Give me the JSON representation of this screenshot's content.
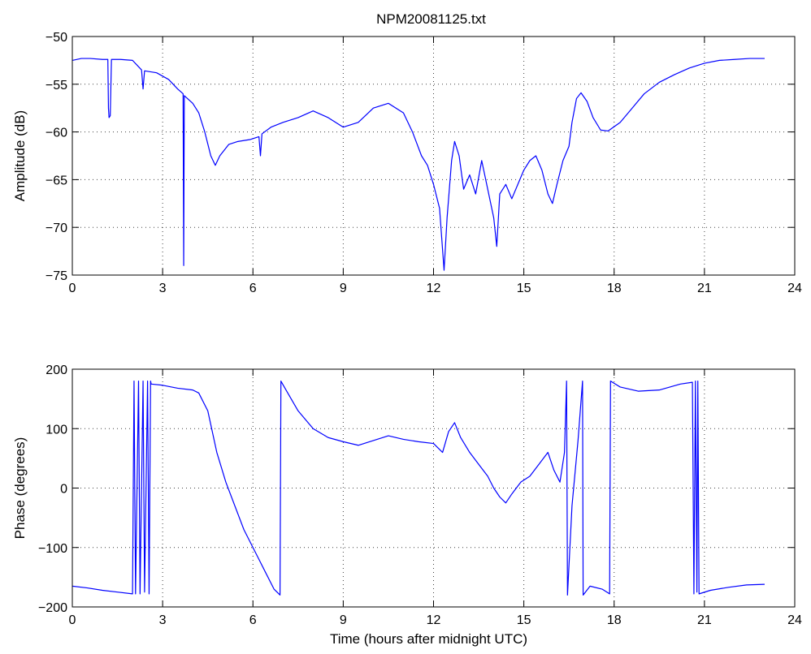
{
  "chart_data": [
    {
      "type": "line",
      "title": "NPM20081125.txt",
      "xlabel": "",
      "ylabel": "Amplitude (dB)",
      "xlim": [
        0,
        24
      ],
      "ylim": [
        -75,
        -50
      ],
      "xticks": [
        "0",
        "3",
        "6",
        "9",
        "12",
        "15",
        "18",
        "21",
        "24"
      ],
      "yticks": [
        "-50",
        "-55",
        "-60",
        "-65",
        "-70",
        "-75"
      ],
      "grid": true,
      "series": [
        {
          "color": "#0000ff",
          "points": [
            [
              0,
              -52.5
            ],
            [
              0.3,
              -52.3
            ],
            [
              0.6,
              -52.3
            ],
            [
              1.0,
              -52.4
            ],
            [
              1.18,
              -52.4
            ],
            [
              1.2,
              -57.5
            ],
            [
              1.22,
              -58.5
            ],
            [
              1.26,
              -58.3
            ],
            [
              1.3,
              -52.4
            ],
            [
              1.6,
              -52.4
            ],
            [
              2.0,
              -52.5
            ],
            [
              2.3,
              -53.5
            ],
            [
              2.35,
              -55.5
            ],
            [
              2.4,
              -53.6
            ],
            [
              2.8,
              -53.8
            ],
            [
              3.2,
              -54.5
            ],
            [
              3.5,
              -55.5
            ],
            [
              3.68,
              -56.0
            ],
            [
              3.7,
              -74.0
            ],
            [
              3.72,
              -56.2
            ],
            [
              4.0,
              -57.0
            ],
            [
              4.2,
              -58.0
            ],
            [
              4.4,
              -60.0
            ],
            [
              4.6,
              -62.5
            ],
            [
              4.75,
              -63.5
            ],
            [
              4.9,
              -62.5
            ],
            [
              5.2,
              -61.3
            ],
            [
              5.5,
              -61.0
            ],
            [
              5.9,
              -60.8
            ],
            [
              6.2,
              -60.5
            ],
            [
              6.25,
              -62.5
            ],
            [
              6.3,
              -60.2
            ],
            [
              6.6,
              -59.5
            ],
            [
              7.0,
              -59.0
            ],
            [
              7.5,
              -58.5
            ],
            [
              8.0,
              -57.8
            ],
            [
              8.5,
              -58.5
            ],
            [
              9.0,
              -59.5
            ],
            [
              9.5,
              -59.0
            ],
            [
              10.0,
              -57.5
            ],
            [
              10.5,
              -57.0
            ],
            [
              11.0,
              -58.0
            ],
            [
              11.3,
              -60.0
            ],
            [
              11.6,
              -62.5
            ],
            [
              11.8,
              -63.5
            ],
            [
              12.0,
              -65.5
            ],
            [
              12.2,
              -68.0
            ],
            [
              12.35,
              -74.5
            ],
            [
              12.45,
              -69.0
            ],
            [
              12.6,
              -63.0
            ],
            [
              12.7,
              -61.0
            ],
            [
              12.85,
              -62.5
            ],
            [
              13.0,
              -66.0
            ],
            [
              13.2,
              -64.5
            ],
            [
              13.4,
              -66.5
            ],
            [
              13.6,
              -63.0
            ],
            [
              13.8,
              -66.0
            ],
            [
              14.0,
              -69.0
            ],
            [
              14.1,
              -72.0
            ],
            [
              14.2,
              -66.5
            ],
            [
              14.4,
              -65.5
            ],
            [
              14.6,
              -67.0
            ],
            [
              14.8,
              -65.5
            ],
            [
              15.0,
              -64.0
            ],
            [
              15.2,
              -63.0
            ],
            [
              15.4,
              -62.5
            ],
            [
              15.6,
              -64.0
            ],
            [
              15.8,
              -66.5
            ],
            [
              15.95,
              -67.5
            ],
            [
              16.1,
              -65.5
            ],
            [
              16.3,
              -63.0
            ],
            [
              16.5,
              -61.5
            ],
            [
              16.6,
              -59.0
            ],
            [
              16.75,
              -56.5
            ],
            [
              16.9,
              -55.9
            ],
            [
              17.1,
              -56.8
            ],
            [
              17.3,
              -58.5
            ],
            [
              17.55,
              -59.8
            ],
            [
              17.8,
              -59.9
            ],
            [
              18.2,
              -59.0
            ],
            [
              18.6,
              -57.5
            ],
            [
              19.0,
              -56.0
            ],
            [
              19.5,
              -54.8
            ],
            [
              20.0,
              -54.0
            ],
            [
              20.5,
              -53.3
            ],
            [
              21.0,
              -52.8
            ],
            [
              21.5,
              -52.5
            ],
            [
              22.0,
              -52.4
            ],
            [
              22.5,
              -52.3
            ],
            [
              23.0,
              -52.3
            ]
          ]
        }
      ]
    },
    {
      "type": "line",
      "title": "",
      "xlabel": "Time (hours after midnight UTC)",
      "ylabel": "Phase (degrees)",
      "xlim": [
        0,
        24
      ],
      "ylim": [
        -200,
        200
      ],
      "xticks": [
        "0",
        "3",
        "6",
        "9",
        "12",
        "15",
        "18",
        "21",
        "24"
      ],
      "yticks": [
        "200",
        "100",
        "0",
        "-100",
        "-200"
      ],
      "grid": true,
      "series": [
        {
          "color": "#0000ff",
          "points": [
            [
              0,
              -165
            ],
            [
              0.5,
              -168
            ],
            [
              1.0,
              -172
            ],
            [
              1.5,
              -175
            ],
            [
              2.0,
              -178
            ],
            [
              2.05,
              180
            ],
            [
              2.1,
              -178
            ],
            [
              2.2,
              180
            ],
            [
              2.25,
              -178
            ],
            [
              2.35,
              180
            ],
            [
              2.4,
              -175
            ],
            [
              2.5,
              180
            ],
            [
              2.55,
              -178
            ],
            [
              2.6,
              180
            ],
            [
              2.62,
              175
            ],
            [
              3.0,
              173
            ],
            [
              3.5,
              168
            ],
            [
              4.0,
              165
            ],
            [
              4.2,
              160
            ],
            [
              4.5,
              130
            ],
            [
              4.8,
              60
            ],
            [
              5.1,
              10
            ],
            [
              5.4,
              -30
            ],
            [
              5.7,
              -70
            ],
            [
              6.0,
              -100
            ],
            [
              6.2,
              -120
            ],
            [
              6.4,
              -140
            ],
            [
              6.7,
              -170
            ],
            [
              6.9,
              -180
            ],
            [
              6.93,
              180
            ],
            [
              7.1,
              165
            ],
            [
              7.5,
              130
            ],
            [
              8.0,
              100
            ],
            [
              8.5,
              85
            ],
            [
              9.0,
              78
            ],
            [
              9.5,
              72
            ],
            [
              10.0,
              80
            ],
            [
              10.5,
              88
            ],
            [
              11.0,
              82
            ],
            [
              11.5,
              78
            ],
            [
              12.0,
              75
            ],
            [
              12.3,
              60
            ],
            [
              12.5,
              95
            ],
            [
              12.7,
              110
            ],
            [
              12.9,
              85
            ],
            [
              13.2,
              60
            ],
            [
              13.5,
              40
            ],
            [
              13.8,
              20
            ],
            [
              14.0,
              0
            ],
            [
              14.2,
              -15
            ],
            [
              14.4,
              -25
            ],
            [
              14.6,
              -10
            ],
            [
              14.9,
              10
            ],
            [
              15.2,
              20
            ],
            [
              15.5,
              40
            ],
            [
              15.8,
              60
            ],
            [
              16.0,
              30
            ],
            [
              16.2,
              10
            ],
            [
              16.35,
              60
            ],
            [
              16.42,
              180
            ],
            [
              16.45,
              -180
            ],
            [
              16.6,
              -30
            ],
            [
              16.8,
              80
            ],
            [
              16.95,
              180
            ],
            [
              16.97,
              -180
            ],
            [
              17.2,
              -165
            ],
            [
              17.6,
              -170
            ],
            [
              17.85,
              -178
            ],
            [
              17.88,
              180
            ],
            [
              18.2,
              170
            ],
            [
              18.8,
              163
            ],
            [
              19.5,
              165
            ],
            [
              20.2,
              175
            ],
            [
              20.6,
              178
            ],
            [
              20.65,
              -178
            ],
            [
              20.7,
              180
            ],
            [
              20.75,
              -175
            ],
            [
              20.78,
              180
            ],
            [
              20.82,
              -178
            ],
            [
              21.2,
              -172
            ],
            [
              21.8,
              -167
            ],
            [
              22.4,
              -163
            ],
            [
              23.0,
              -162
            ]
          ]
        }
      ]
    }
  ]
}
